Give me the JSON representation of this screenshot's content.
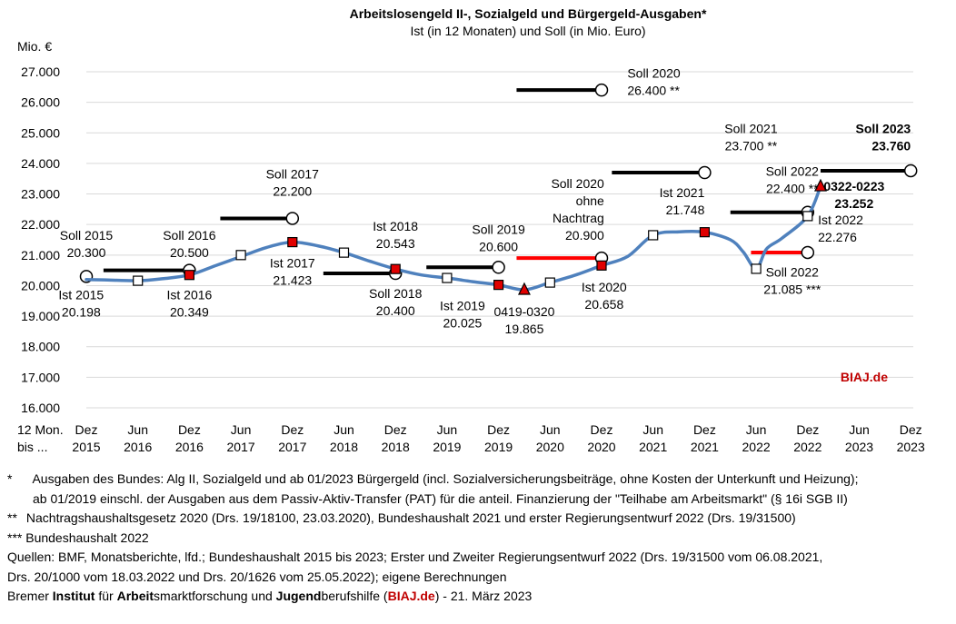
{
  "chart_data": {
    "type": "line",
    "title": "Arbeitslosengeld II-, Sozialgeld und Bürgergeld-Ausgaben*",
    "subtitle": "Ist (in 12 Monaten) und Soll (in Mio. Euro)",
    "ylabel": "Mio. €",
    "ylim": [
      16000,
      27000
    ],
    "ytick_labels": [
      "16.000",
      "17.000",
      "18.000",
      "19.000",
      "20.000",
      "21.000",
      "22.000",
      "23.000",
      "24.000",
      "25.000",
      "26.000",
      "27.000"
    ],
    "xaxis_prefix": [
      "12 Mon.",
      "bis ..."
    ],
    "xticks": [
      [
        "Dez",
        "2015"
      ],
      [
        "Jun",
        "2016"
      ],
      [
        "Dez",
        "2016"
      ],
      [
        "Jun",
        "2017"
      ],
      [
        "Dez",
        "2017"
      ],
      [
        "Jun",
        "2018"
      ],
      [
        "Dez",
        "2018"
      ],
      [
        "Jun",
        "2019"
      ],
      [
        "Dez",
        "2019"
      ],
      [
        "Jun",
        "2020"
      ],
      [
        "Dez",
        "2020"
      ],
      [
        "Jun",
        "2021"
      ],
      [
        "Dez",
        "2021"
      ],
      [
        "Jun",
        "2022"
      ],
      [
        "Dez",
        "2022"
      ],
      [
        "Jun",
        "2023"
      ],
      [
        "Dez",
        "2023"
      ]
    ],
    "ist_series": {
      "name": "Ist (12 Monate)",
      "color": "#4f81bd",
      "points": [
        [
          0,
          20198
        ],
        [
          0.333,
          20190
        ],
        [
          1,
          20160
        ],
        [
          1.5,
          20230
        ],
        [
          2,
          20349
        ],
        [
          2.5,
          20650
        ],
        [
          3,
          20950
        ],
        [
          3.5,
          21250
        ],
        [
          4,
          21423
        ],
        [
          4.5,
          21300
        ],
        [
          5,
          21080
        ],
        [
          5.5,
          20800
        ],
        [
          6,
          20543
        ],
        [
          6.5,
          20350
        ],
        [
          7,
          20250
        ],
        [
          7.5,
          20130
        ],
        [
          8,
          20025
        ],
        [
          8.5,
          19865
        ],
        [
          9,
          20100
        ],
        [
          9.5,
          20350
        ],
        [
          10,
          20658
        ],
        [
          10.5,
          20950
        ],
        [
          11,
          21650
        ],
        [
          11.5,
          21760
        ],
        [
          12,
          21748
        ],
        [
          12.5,
          21500
        ],
        [
          12.75,
          21100
        ],
        [
          13,
          20550
        ],
        [
          13.2,
          21200
        ],
        [
          13.5,
          21550
        ],
        [
          14,
          22276
        ],
        [
          14.25,
          23252
        ]
      ],
      "markers": [
        {
          "x": 1,
          "y": 20160,
          "style": "open-square"
        },
        {
          "x": 2,
          "y": 20349,
          "style": "red-square"
        },
        {
          "x": 3,
          "y": 21000,
          "style": "open-square"
        },
        {
          "x": 4,
          "y": 21423,
          "style": "red-square"
        },
        {
          "x": 5,
          "y": 21080,
          "style": "open-square"
        },
        {
          "x": 6,
          "y": 20543,
          "style": "red-square"
        },
        {
          "x": 7,
          "y": 20250,
          "style": "open-square"
        },
        {
          "x": 8,
          "y": 20025,
          "style": "red-square"
        },
        {
          "x": 8.5,
          "y": 19865,
          "style": "red-triangle"
        },
        {
          "x": 9,
          "y": 20100,
          "style": "open-square"
        },
        {
          "x": 10,
          "y": 20658,
          "style": "red-square"
        },
        {
          "x": 11,
          "y": 21650,
          "style": "open-square"
        },
        {
          "x": 12,
          "y": 21748,
          "style": "red-square"
        },
        {
          "x": 13,
          "y": 20550,
          "style": "open-square"
        },
        {
          "x": 14,
          "y": 22276,
          "style": "open-square"
        },
        {
          "x": 14.25,
          "y": 23252,
          "style": "red-triangle"
        }
      ]
    },
    "soll_segments": [
      {
        "x0": 0.333,
        "x1": 2,
        "y": 20500,
        "color": "#000000",
        "circle_x": 2
      },
      {
        "x0": 2.6,
        "x1": 4,
        "y": 22200,
        "color": "#000000",
        "circle_x": 4
      },
      {
        "x0": 4.6,
        "x1": 6,
        "y": 20400,
        "color": "#000000",
        "circle_x": 6
      },
      {
        "x0": 6.6,
        "x1": 8,
        "y": 20600,
        "color": "#000000",
        "circle_x": 8
      },
      {
        "x0": 8.35,
        "x1": 10,
        "y": 26400,
        "color": "#000000",
        "circle_x": 10
      },
      {
        "x0": 8.35,
        "x1": 10,
        "y": 20900,
        "color": "#ff0000",
        "circle_x": 10
      },
      {
        "x0": 10.2,
        "x1": 12,
        "y": 23700,
        "color": "#000000",
        "circle_x": 12
      },
      {
        "x0": 12.5,
        "x1": 14,
        "y": 22400,
        "color": "#000000",
        "circle_x": 14
      },
      {
        "x0": 12.9,
        "x1": 14,
        "y": 21085,
        "color": "#ff0000",
        "circle_x": 14
      },
      {
        "x0": 14.25,
        "x1": 16,
        "y": 23760,
        "color": "#000000",
        "circle_x": 16
      }
    ],
    "start_circle": {
      "x": 0,
      "y": 20300
    },
    "labels": [
      {
        "lines": [
          "Soll 2015",
          "20.300"
        ],
        "x": 0,
        "y": 21500,
        "align": "middle"
      },
      {
        "lines": [
          "Ist 2015",
          "20.198"
        ],
        "x": -0.1,
        "y": 19550,
        "align": "middle"
      },
      {
        "lines": [
          "Soll 2016",
          "20.500"
        ],
        "x": 2,
        "y": 21500,
        "align": "middle"
      },
      {
        "lines": [
          "Ist 2016",
          "20.349"
        ],
        "x": 2,
        "y": 19550,
        "align": "middle"
      },
      {
        "lines": [
          "Soll 2017",
          "22.200"
        ],
        "x": 4,
        "y": 23500,
        "align": "middle"
      },
      {
        "lines": [
          "Ist 2017",
          "21.423"
        ],
        "x": 4,
        "y": 20600,
        "align": "middle"
      },
      {
        "lines": [
          "Ist 2018",
          "20.543"
        ],
        "x": 6,
        "y": 21800,
        "align": "middle"
      },
      {
        "lines": [
          "Soll 2018",
          "20.400"
        ],
        "x": 6,
        "y": 19600,
        "align": "middle"
      },
      {
        "lines": [
          "Soll 2019",
          "20.600"
        ],
        "x": 8,
        "y": 21700,
        "align": "middle"
      },
      {
        "lines": [
          "Ist 2019",
          "20.025"
        ],
        "x": 7.3,
        "y": 19200,
        "align": "middle"
      },
      {
        "lines": [
          "0419-0320",
          "19.865"
        ],
        "x": 8.5,
        "y": 19000,
        "align": "middle"
      },
      {
        "lines": [
          "Soll 2020",
          "ohne",
          "Nachtrag",
          "20.900"
        ],
        "x": 10.05,
        "y": 23200,
        "align": "end"
      },
      {
        "lines": [
          "Ist 2020",
          "20.658"
        ],
        "x": 10.05,
        "y": 19800,
        "align": "middle"
      },
      {
        "lines": [
          "Soll 2020",
          "26.400 **"
        ],
        "x": 10.5,
        "y": 26800,
        "align": "start"
      },
      {
        "lines": [
          "Soll 2021",
          "23.700 **"
        ],
        "x": 12.9,
        "y": 25000,
        "align": "middle"
      },
      {
        "lines": [
          "Ist 2021",
          "21.748"
        ],
        "x": 12,
        "y": 22900,
        "align": "end-right"
      },
      {
        "lines": [
          "Soll 2022",
          "22.400 **"
        ],
        "x": 13.7,
        "y": 23600,
        "align": "middle"
      },
      {
        "lines": [
          "Ist 2022",
          "22.276"
        ],
        "x": 14.2,
        "y": 22000,
        "align": "start"
      },
      {
        "lines": [
          "Soll 2022",
          "21.085 ***"
        ],
        "x": 13.7,
        "y": 20300,
        "align": "middle"
      },
      {
        "lines": [
          "0322-0223",
          "23.252"
        ],
        "x": 14.9,
        "y": 23100,
        "align": "middle",
        "bold": true
      },
      {
        "lines": [
          "Soll 2023",
          "23.760"
        ],
        "x": 16,
        "y": 25000,
        "align": "end",
        "bold": true
      }
    ],
    "watermark": "BIAJ.de"
  },
  "footnotes": {
    "star1_mark": "*",
    "star1_line1": "Ausgaben des Bundes: Alg II, Sozialgeld und ab 01/2023 Bürgergeld (incl. Sozialversicherungsbeiträge, ohne Kosten der Unterkunft und Heizung);",
    "star1_line2": "ab 01/2019 einschl. der Ausgaben aus dem Passiv-Aktiv-Transfer (PAT) für die anteil. Finanzierung der \"Teilhabe am Arbeitsmarkt\" (§ 16i SGB II)",
    "star2_mark": "**",
    "star2_text": "Nachtragshaushaltsgesetz 2020 (Drs. 19/18100, 23.03.2020), Bundeshaushalt 2021 und erster Regierungsentwurf 2022 (Drs. 19/31500)",
    "star3": "*** Bundeshaushalt 2022",
    "sources_line1": "Quellen: BMF, Monatsberichte, lfd.; Bundeshaushalt 2015 bis 2023; Erster und Zweiter Regierungsentwurf 2022 (Drs. 19/31500 vom 06.08.2021,",
    "sources_line2": "Drs. 20/1000 vom 18.03.2022 und Drs. 20/1626 vom 25.05.2022); eigene Berechnungen",
    "credit": {
      "p1": "Bremer ",
      "b1": "Institut",
      "p2": " für ",
      "b2": "Arbeit",
      "p3": "smarktforschung und ",
      "b3": "Jugend",
      "p4": "berufshilfe (",
      "brand": "BIAJ.de",
      "p5": ") - 21. März 2023"
    }
  }
}
